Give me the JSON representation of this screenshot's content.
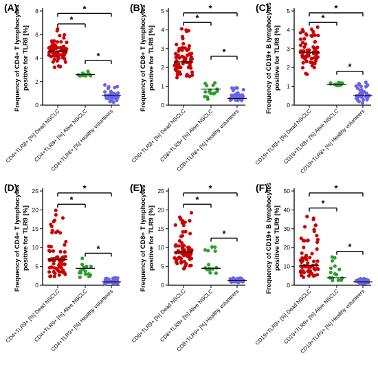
{
  "chart_data": [
    {
      "type": "scatter",
      "panel_label": "(A)",
      "ylabel": [
        "Frequency of CD4+ T lymphocytes",
        "positive for TLR8 [%]"
      ],
      "ylim": [
        0,
        8
      ],
      "yticks": [
        0,
        2,
        4,
        6,
        8
      ],
      "categories": [
        "CD4+TLR8+ [%] Dead NSCLC",
        "CD4+TLR8+ [%] Alive NSCLC",
        "CD4+TLR8+ [%] Healthy volunteers"
      ],
      "series": [
        {
          "n": 70,
          "min": 3.0,
          "max": 6.5,
          "median": 4.6,
          "color": "#cc0000"
        },
        {
          "n": 15,
          "min": 2.4,
          "max": 2.9,
          "median": 2.6,
          "color": "#2ca02c"
        },
        {
          "n": 35,
          "min": 0.1,
          "max": 1.8,
          "median": 0.8,
          "color": "#6b63e8"
        }
      ],
      "brackets": [
        {
          "from": 0,
          "to": 1,
          "level": 6.9,
          "label": "*"
        },
        {
          "from": 0,
          "to": 2,
          "level": 7.8,
          "label": "*"
        },
        {
          "from": 1,
          "to": 2,
          "level": 3.8,
          "label": "*"
        }
      ]
    },
    {
      "type": "scatter",
      "panel_label": "(B)",
      "ylabel": [
        "Frequency of CD8+ T lymphocytes",
        "positive for TLR8 [%]"
      ],
      "ylim": [
        0,
        5
      ],
      "yticks": [
        0,
        1,
        2,
        3,
        4,
        5
      ],
      "categories": [
        "CD8+TLR8+ [%] Dead NSCLC",
        "CD8+TLR8+ [%] Alive NSCLC",
        "CD8+TLR8+ [%] Healthy volunteers"
      ],
      "series": [
        {
          "n": 70,
          "min": 1.3,
          "max": 4.1,
          "median": 2.3,
          "color": "#cc0000"
        },
        {
          "n": 15,
          "min": 0.2,
          "max": 1.3,
          "median": 0.85,
          "color": "#2ca02c"
        },
        {
          "n": 35,
          "min": 0.15,
          "max": 1.0,
          "median": 0.35,
          "color": "#6b63e8"
        }
      ],
      "brackets": [
        {
          "from": 0,
          "to": 1,
          "level": 4.4,
          "label": "*"
        },
        {
          "from": 0,
          "to": 2,
          "level": 4.9,
          "label": "*"
        },
        {
          "from": 1,
          "to": 2,
          "level": 2.6,
          "label": "*"
        }
      ]
    },
    {
      "type": "scatter",
      "panel_label": "(C)",
      "ylabel": [
        "Frequency of CD19+ B lymphocytes",
        "positive for TLR8 [%]"
      ],
      "ylim": [
        0,
        5
      ],
      "yticks": [
        0,
        1,
        2,
        3,
        4,
        5
      ],
      "categories": [
        "CD19+TLR8+ [%] Dead NSCLC",
        "CD19+TLR8+ [%] Alive NSCLC",
        "CD19+TLR8+ [%] Healthy volunteers"
      ],
      "series": [
        {
          "n": 70,
          "min": 1.5,
          "max": 4.2,
          "median": 2.8,
          "color": "#cc0000"
        },
        {
          "n": 15,
          "min": 1.0,
          "max": 1.2,
          "median": 1.1,
          "color": "#2ca02c"
        },
        {
          "n": 35,
          "min": 0.1,
          "max": 1.3,
          "median": 0.5,
          "color": "#6b63e8"
        }
      ],
      "brackets": [
        {
          "from": 0,
          "to": 1,
          "level": 4.4,
          "label": "*"
        },
        {
          "from": 0,
          "to": 2,
          "level": 4.9,
          "label": "*"
        },
        {
          "from": 1,
          "to": 2,
          "level": 1.8,
          "label": "*"
        }
      ]
    },
    {
      "type": "scatter",
      "panel_label": "(D)",
      "ylabel": [
        "Frequency of CD4+ T lymphocytes",
        "positive for TLR9 [%]"
      ],
      "ylim": [
        0,
        25
      ],
      "yticks": [
        0,
        5,
        10,
        15,
        20,
        25
      ],
      "categories": [
        "CD4+TLR9+ [%] Dead NSCLC",
        "CD4+TLR9+ [%] Alive NSCLC",
        "CD4+TLR9+ [%] Healthy volunteers"
      ],
      "series": [
        {
          "n": 70,
          "min": 1.5,
          "max": 21,
          "median": 6.8,
          "color": "#cc0000"
        },
        {
          "n": 15,
          "min": 1.5,
          "max": 8.0,
          "median": 4.5,
          "color": "#2ca02c"
        },
        {
          "n": 35,
          "min": 0.2,
          "max": 2.0,
          "median": 0.9,
          "color": "#6b63e8"
        }
      ],
      "brackets": [
        {
          "from": 0,
          "to": 1,
          "level": 21.5,
          "label": "*"
        },
        {
          "from": 0,
          "to": 2,
          "level": 24.5,
          "label": "*"
        },
        {
          "from": 1,
          "to": 2,
          "level": 8.5,
          "label": "*"
        }
      ]
    },
    {
      "type": "scatter",
      "panel_label": "(E)",
      "ylabel": [
        "Frequency of CD8+ T lymphocytes",
        "positive for TLR9 [%]"
      ],
      "ylim": [
        0,
        25
      ],
      "yticks": [
        0,
        5,
        10,
        15,
        20,
        25
      ],
      "categories": [
        "CD8+TLR9+ [%] Dead NSCLC",
        "CD8+TLR9+ [%] Alive NSCLC",
        "CD8+TLR9+ [%] Healthy volunteers"
      ],
      "series": [
        {
          "n": 70,
          "min": 4.0,
          "max": 20.5,
          "median": 8.8,
          "color": "#cc0000"
        },
        {
          "n": 15,
          "min": 1.5,
          "max": 11.0,
          "median": 4.5,
          "color": "#2ca02c"
        },
        {
          "n": 35,
          "min": 0.7,
          "max": 2.0,
          "median": 1.2,
          "color": "#6b63e8"
        }
      ],
      "brackets": [
        {
          "from": 0,
          "to": 1,
          "level": 21.5,
          "label": "*"
        },
        {
          "from": 0,
          "to": 2,
          "level": 24.5,
          "label": "*"
        },
        {
          "from": 1,
          "to": 2,
          "level": 12.5,
          "label": "*"
        }
      ]
    },
    {
      "type": "scatter",
      "panel_label": "(F)",
      "ylabel": [
        "Frequency of CD19+ B lymphocytes",
        "positive for TLR9 [%]"
      ],
      "ylim": [
        0,
        50
      ],
      "yticks": [
        0,
        10,
        20,
        30,
        40,
        50
      ],
      "categories": [
        "CD19+TLR9+ [%] Dead NSCLC",
        "CD19+TLR9+ [%] Alive NSCLC",
        "CD19+TLR9+ [%] Healthy volunteers"
      ],
      "series": [
        {
          "n": 70,
          "min": 3.0,
          "max": 38,
          "median": 10.5,
          "color": "#cc0000"
        },
        {
          "n": 15,
          "min": 1.5,
          "max": 15,
          "median": 4.0,
          "color": "#2ca02c"
        },
        {
          "n": 35,
          "min": 0.5,
          "max": 3.5,
          "median": 1.8,
          "color": "#6b63e8"
        }
      ],
      "brackets": [
        {
          "from": 0,
          "to": 1,
          "level": 41,
          "label": "*"
        },
        {
          "from": 0,
          "to": 2,
          "level": 49,
          "label": "*"
        },
        {
          "from": 1,
          "to": 2,
          "level": 18,
          "label": "*"
        }
      ]
    }
  ]
}
